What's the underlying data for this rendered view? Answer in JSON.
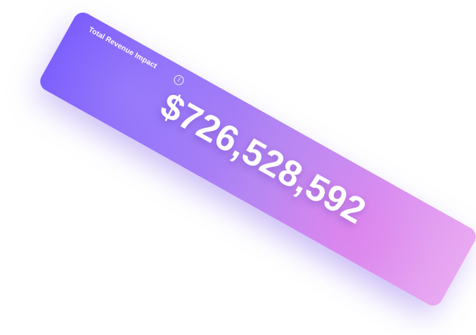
{
  "card": {
    "title": "Total Revenue Impact",
    "value": "$726,528,592",
    "info_icon": "info-icon",
    "colors": {
      "gradient_start": "#7a5cfc",
      "gradient_end": "#e9a9f1",
      "text": "#ffffff"
    }
  }
}
